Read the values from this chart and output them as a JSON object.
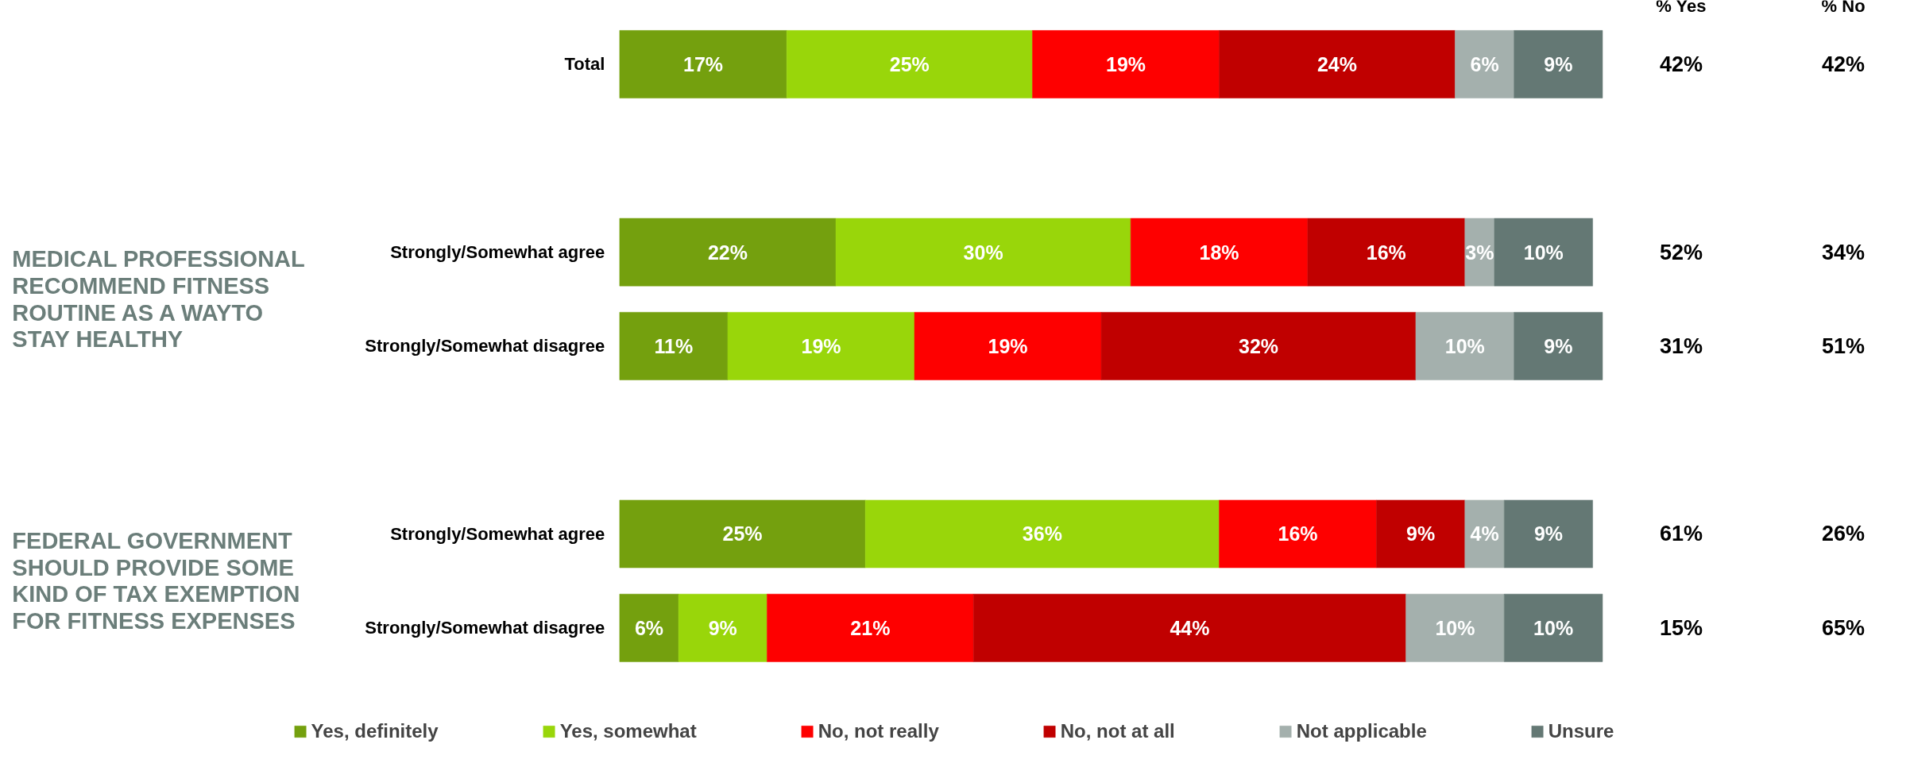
{
  "chart_data": {
    "type": "bar",
    "orientation": "horizontal",
    "stacked": true,
    "legend": "bottom",
    "tick_labels": "y",
    "grid": false,
    "categories": [
      "Total",
      "Strongly/Somewhat agree",
      "Strongly/Somewhat disagree",
      "Strongly/Somewhat agree",
      "Strongly/Somewhat disagree"
    ],
    "series": [
      {
        "name": "Yes, definitely",
        "color": "#74a00e",
        "values": [
          17,
          22,
          11,
          25,
          6
        ],
        "value_labels": [
          "17%",
          "22%",
          "11%",
          "25%",
          "6%"
        ]
      },
      {
        "name": "Yes, somewhat",
        "color": "#99d60a",
        "values": [
          25,
          30,
          19,
          36,
          9
        ],
        "value_labels": [
          "25%",
          "30%",
          "19%",
          "36%",
          "9%"
        ]
      },
      {
        "name": "No, not really",
        "color": "#fe0000",
        "values": [
          19,
          18,
          19,
          16,
          21
        ],
        "value_labels": [
          "19%",
          "18%",
          "19%",
          "16%",
          "21%"
        ]
      },
      {
        "name": "No, not at all",
        "color": "#c00000",
        "values": [
          24,
          16,
          32,
          9,
          44
        ],
        "value_labels": [
          "24%",
          "16%",
          "32%",
          "9%",
          "44%"
        ]
      },
      {
        "name": "Not applicable",
        "color": "#a4b0ad",
        "values": [
          6,
          3,
          10,
          4,
          10
        ],
        "value_labels": [
          "6%",
          "3%",
          "10%",
          "4%",
          "10%"
        ]
      },
      {
        "name": "Unsure",
        "color": "#647874",
        "values": [
          9,
          10,
          9,
          9,
          10
        ],
        "value_labels": [
          "9%",
          "10%",
          "9%",
          "9%",
          "10%"
        ]
      }
    ],
    "annotations": [
      "MEDICAL PROFESSIONAL\nRECOMMEND FITNESS\nROUTINE AS A WAYTO\nSTAY HEALTHY",
      "FEDERAL GOVERNMENT\nSHOULD PROVIDE SOME\nKIND OF TAX EXEMPTION\nFOR FITNESS EXPENSES",
      "% Yes",
      "% No",
      "42%",
      "42%",
      "52%",
      "34%",
      "31%",
      "51%",
      "61%",
      "26%",
      "15%",
      "65%"
    ]
  }
}
